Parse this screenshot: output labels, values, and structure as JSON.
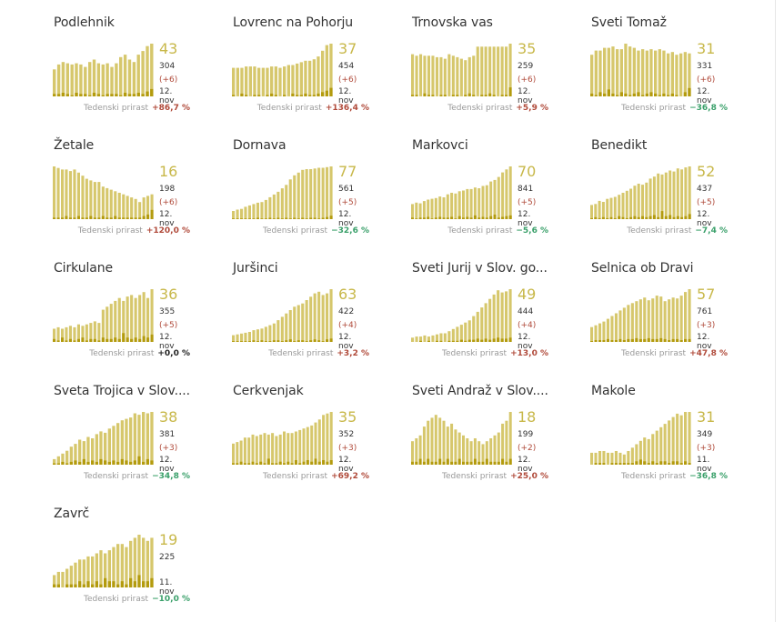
{
  "colors": {
    "bar_total": "#d6c76c",
    "bar_daily": "#b39b0e",
    "big_number": "#c8b84a",
    "up": "#b04a3a",
    "down": "#3aa06a"
  },
  "growth_label": "Tedenski prirast",
  "chart_data": [
    {
      "type": "bar",
      "title": "Podlehnik",
      "big": "43",
      "sum": "304",
      "delta": "(+6)",
      "date": "12. nov",
      "growth": "+86,7 %",
      "trend": "up",
      "series": [
        {
          "values": [
            22,
            26,
            28,
            27,
            26,
            27,
            26,
            24,
            28,
            30,
            27,
            26,
            27,
            24,
            27,
            32,
            34,
            30,
            28,
            34,
            37,
            41,
            43
          ]
        },
        {
          "values": [
            2,
            2,
            3,
            2,
            1,
            3,
            2,
            2,
            1,
            3,
            2,
            1,
            2,
            2,
            2,
            1,
            3,
            2,
            2,
            3,
            2,
            4,
            6
          ]
        }
      ]
    },
    {
      "type": "bar",
      "title": "Lovrenc na Pohorju",
      "big": "37",
      "sum": "454",
      "delta": "(+6)",
      "date": "12. nov",
      "growth": "+136,4 %",
      "trend": "up",
      "series": [
        {
          "values": [
            20,
            20,
            20,
            21,
            21,
            21,
            20,
            20,
            20,
            21,
            21,
            20,
            21,
            22,
            22,
            23,
            24,
            25,
            25,
            26,
            28,
            32,
            36,
            37
          ]
        },
        {
          "values": [
            1,
            0,
            2,
            1,
            0,
            1,
            1,
            0,
            1,
            2,
            1,
            0,
            1,
            0,
            2,
            1,
            1,
            2,
            1,
            1,
            2,
            3,
            4,
            6
          ]
        }
      ]
    },
    {
      "type": "bar",
      "title": "Trnovska vas",
      "big": "35",
      "sum": "259",
      "delta": "(+6)",
      "date": "12. nov",
      "growth": "+5,9 %",
      "trend": "up",
      "series": [
        {
          "values": [
            28,
            27,
            28,
            27,
            27,
            27,
            26,
            26,
            25,
            28,
            27,
            26,
            25,
            24,
            26,
            27,
            33,
            33,
            33,
            33,
            33,
            33,
            33,
            33,
            35
          ]
        },
        {
          "values": [
            1,
            1,
            0,
            2,
            1,
            1,
            0,
            1,
            1,
            0,
            1,
            1,
            0,
            1,
            2,
            1,
            0,
            1,
            1,
            2,
            1,
            0,
            1,
            1,
            6
          ]
        }
      ]
    },
    {
      "type": "bar",
      "title": "Sveti Tomaž",
      "big": "31",
      "sum": "331",
      "delta": "(+6)",
      "date": "12. nov",
      "growth": "−36,8 %",
      "trend": "down",
      "series": [
        {
          "values": [
            30,
            33,
            33,
            35,
            35,
            36,
            34,
            34,
            38,
            36,
            35,
            33,
            34,
            33,
            34,
            33,
            34,
            33,
            31,
            32,
            30,
            31,
            32,
            31
          ]
        },
        {
          "values": [
            2,
            1,
            3,
            2,
            5,
            2,
            1,
            3,
            2,
            1,
            2,
            3,
            1,
            2,
            3,
            2,
            1,
            2,
            1,
            2,
            1,
            0,
            3,
            6
          ]
        }
      ]
    },
    {
      "type": "bar",
      "title": "Žetale",
      "big": "16",
      "sum": "198",
      "delta": "(+6)",
      "date": "12. nov",
      "growth": "+120,0 %",
      "trend": "up",
      "series": [
        {
          "values": [
            34,
            33,
            32,
            32,
            31,
            32,
            30,
            28,
            26,
            25,
            24,
            24,
            21,
            20,
            19,
            18,
            17,
            16,
            15,
            14,
            13,
            11,
            14,
            15,
            16
          ]
        },
        {
          "values": [
            1,
            1,
            1,
            2,
            1,
            1,
            2,
            1,
            1,
            2,
            1,
            1,
            2,
            1,
            1,
            2,
            1,
            1,
            1,
            1,
            1,
            1,
            2,
            3,
            6
          ]
        }
      ]
    },
    {
      "type": "bar",
      "title": "Dornava",
      "big": "77",
      "sum": "561",
      "delta": "(+5)",
      "date": "12. nov",
      "growth": "−32,6 %",
      "trend": "down",
      "series": [
        {
          "values": [
            12,
            14,
            15,
            18,
            20,
            22,
            24,
            25,
            28,
            32,
            36,
            40,
            45,
            50,
            58,
            64,
            68,
            72,
            73,
            73,
            74,
            75,
            75,
            76,
            77
          ]
        },
        {
          "values": [
            1,
            1,
            1,
            1,
            1,
            1,
            2,
            1,
            1,
            2,
            1,
            2,
            1,
            2,
            1,
            2,
            1,
            2,
            1,
            2,
            2,
            1,
            2,
            3,
            5
          ]
        }
      ]
    },
    {
      "type": "bar",
      "title": "Markovci",
      "big": "70",
      "sum": "841",
      "delta": "(+5)",
      "date": "12. nov",
      "growth": "−5,6 %",
      "trend": "down",
      "series": [
        {
          "values": [
            20,
            22,
            21,
            24,
            26,
            27,
            28,
            30,
            29,
            33,
            35,
            34,
            37,
            38,
            40,
            40,
            42,
            41,
            44,
            45,
            50,
            52,
            56,
            62,
            66,
            70
          ]
        },
        {
          "values": [
            2,
            1,
            2,
            2,
            3,
            1,
            2,
            3,
            2,
            2,
            3,
            1,
            4,
            2,
            3,
            2,
            5,
            2,
            3,
            2,
            4,
            6,
            2,
            3,
            4,
            5
          ]
        }
      ]
    },
    {
      "type": "bar",
      "title": "Benedikt",
      "big": "52",
      "sum": "437",
      "delta": "(+5)",
      "date": "12. nov",
      "growth": "−7,4 %",
      "trend": "down",
      "series": [
        {
          "values": [
            14,
            15,
            18,
            17,
            20,
            21,
            22,
            24,
            26,
            28,
            30,
            33,
            35,
            34,
            36,
            40,
            42,
            45,
            44,
            46,
            48,
            47,
            50,
            49,
            51,
            52
          ]
        },
        {
          "values": [
            1,
            2,
            1,
            2,
            1,
            2,
            1,
            3,
            2,
            1,
            2,
            3,
            2,
            3,
            2,
            3,
            4,
            2,
            8,
            3,
            4,
            2,
            3,
            2,
            3,
            5
          ]
        }
      ]
    },
    {
      "type": "bar",
      "title": "Cirkulane",
      "big": "36",
      "sum": "355",
      "delta": "(+5)",
      "date": "12. nov",
      "growth": "+0,0 %",
      "trend": "zero",
      "series": [
        {
          "values": [
            9,
            10,
            9,
            10,
            11,
            10,
            12,
            11,
            12,
            13,
            14,
            13,
            22,
            24,
            26,
            28,
            30,
            28,
            31,
            32,
            30,
            32,
            34,
            30,
            36
          ]
        },
        {
          "values": [
            2,
            1,
            3,
            1,
            2,
            1,
            2,
            3,
            1,
            2,
            2,
            1,
            3,
            2,
            2,
            3,
            2,
            6,
            3,
            2,
            3,
            2,
            4,
            3,
            5
          ]
        }
      ]
    },
    {
      "type": "bar",
      "title": "Juršinci",
      "big": "63",
      "sum": "422",
      "delta": "(+4)",
      "date": "12. nov",
      "growth": "+3,2 %",
      "trend": "up",
      "series": [
        {
          "values": [
            8,
            9,
            10,
            11,
            12,
            14,
            15,
            16,
            18,
            20,
            22,
            26,
            30,
            34,
            38,
            42,
            44,
            46,
            50,
            54,
            58,
            60,
            56,
            58,
            63
          ]
        },
        {
          "values": [
            1,
            1,
            1,
            1,
            1,
            2,
            1,
            2,
            1,
            1,
            2,
            2,
            1,
            2,
            3,
            1,
            2,
            2,
            1,
            2,
            3,
            2,
            1,
            3,
            4
          ]
        }
      ]
    },
    {
      "type": "bar",
      "title": "Sveti Jurij v Slov. go...",
      "big": "49",
      "sum": "444",
      "delta": "(+4)",
      "date": "12. nov",
      "growth": "+13,0 %",
      "trend": "up",
      "series": [
        {
          "values": [
            4,
            5,
            5,
            6,
            5,
            6,
            7,
            8,
            8,
            10,
            12,
            14,
            16,
            18,
            20,
            24,
            28,
            32,
            36,
            40,
            44,
            48,
            46,
            47,
            49
          ]
        },
        {
          "values": [
            0,
            0,
            1,
            0,
            1,
            0,
            1,
            1,
            0,
            1,
            1,
            1,
            2,
            1,
            2,
            2,
            3,
            2,
            3,
            2,
            3,
            4,
            3,
            3,
            4
          ]
        }
      ]
    },
    {
      "type": "bar",
      "title": "Selnica ob Dravi",
      "big": "57",
      "sum": "761",
      "delta": "(+3)",
      "date": "12. nov",
      "growth": "+47,8 %",
      "trend": "up",
      "series": [
        {
          "values": [
            16,
            18,
            20,
            22,
            25,
            28,
            31,
            34,
            37,
            40,
            42,
            44,
            46,
            48,
            45,
            47,
            50,
            49,
            44,
            46,
            48,
            47,
            50,
            54,
            57
          ]
        },
        {
          "values": [
            1,
            2,
            2,
            2,
            3,
            2,
            2,
            3,
            2,
            3,
            3,
            4,
            3,
            3,
            4,
            3,
            3,
            4,
            3,
            2,
            3,
            3,
            2,
            3,
            3
          ]
        }
      ]
    },
    {
      "type": "bar",
      "title": "Sveta Trojica v Slov....",
      "big": "38",
      "sum": "381",
      "delta": "(+3)",
      "date": "12. nov",
      "growth": "−34,8 %",
      "trend": "down",
      "series": [
        {
          "values": [
            4,
            6,
            8,
            10,
            13,
            15,
            18,
            17,
            20,
            19,
            22,
            24,
            23,
            26,
            28,
            30,
            32,
            33,
            34,
            37,
            36,
            38,
            37,
            38
          ]
        },
        {
          "values": [
            1,
            1,
            2,
            1,
            2,
            3,
            2,
            4,
            2,
            3,
            2,
            4,
            3,
            2,
            3,
            2,
            4,
            3,
            2,
            3,
            6,
            2,
            4,
            3
          ]
        }
      ]
    },
    {
      "type": "bar",
      "title": "Cerkvenjak",
      "big": "35",
      "sum": "352",
      "delta": "(+3)",
      "date": "12. nov",
      "growth": "+69,2 %",
      "trend": "up",
      "series": [
        {
          "values": [
            14,
            15,
            16,
            18,
            18,
            20,
            19,
            20,
            21,
            20,
            21,
            19,
            20,
            22,
            21,
            21,
            22,
            23,
            24,
            25,
            26,
            28,
            30,
            33,
            34,
            35
          ]
        },
        {
          "values": [
            1,
            1,
            2,
            1,
            1,
            2,
            1,
            2,
            1,
            4,
            1,
            1,
            2,
            1,
            2,
            1,
            3,
            1,
            2,
            3,
            2,
            4,
            2,
            3,
            2,
            3
          ]
        }
      ]
    },
    {
      "type": "bar",
      "title": "Sveti Andraž v Slov....",
      "big": "18",
      "sum": "199",
      "delta": "(+2)",
      "date": "12. nov",
      "growth": "+25,0 %",
      "trend": "up",
      "series": [
        {
          "values": [
            8,
            9,
            10,
            13,
            15,
            16,
            17,
            16,
            15,
            13,
            14,
            12,
            11,
            10,
            9,
            8,
            9,
            8,
            7,
            8,
            9,
            10,
            11,
            14,
            15,
            18
          ]
        },
        {
          "values": [
            1,
            1,
            2,
            1,
            2,
            1,
            1,
            2,
            1,
            2,
            1,
            1,
            2,
            1,
            1,
            1,
            2,
            1,
            1,
            2,
            1,
            1,
            1,
            2,
            1,
            2
          ]
        }
      ]
    },
    {
      "type": "bar",
      "title": "Makole",
      "big": "31",
      "sum": "349",
      "delta": "(+3)",
      "date": "11. nov",
      "growth": "−36,8 %",
      "trend": "down",
      "series": [
        {
          "values": [
            7,
            7,
            8,
            8,
            7,
            7,
            8,
            7,
            6,
            8,
            10,
            12,
            14,
            16,
            15,
            18,
            20,
            22,
            24,
            26,
            28,
            30,
            29,
            31,
            31
          ]
        },
        {
          "values": [
            0,
            1,
            1,
            1,
            0,
            1,
            1,
            1,
            1,
            1,
            1,
            2,
            3,
            2,
            1,
            2,
            1,
            2,
            2,
            1,
            2,
            2,
            1,
            2,
            1
          ]
        }
      ]
    },
    {
      "type": "bar",
      "title": "Zavrč",
      "big": "19",
      "sum": "225",
      "delta": "",
      "date": "11. nov",
      "growth": "−10,0 %",
      "trend": "down",
      "series": [
        {
          "values": [
            4,
            5,
            5,
            6,
            7,
            8,
            9,
            9,
            10,
            10,
            11,
            12,
            11,
            12,
            13,
            14,
            14,
            13,
            15,
            16,
            17,
            16,
            15,
            16
          ]
        },
        {
          "values": [
            1,
            1,
            0,
            1,
            1,
            1,
            2,
            1,
            2,
            1,
            2,
            1,
            3,
            2,
            2,
            1,
            2,
            1,
            3,
            2,
            4,
            2,
            2,
            3
          ]
        }
      ]
    }
  ]
}
